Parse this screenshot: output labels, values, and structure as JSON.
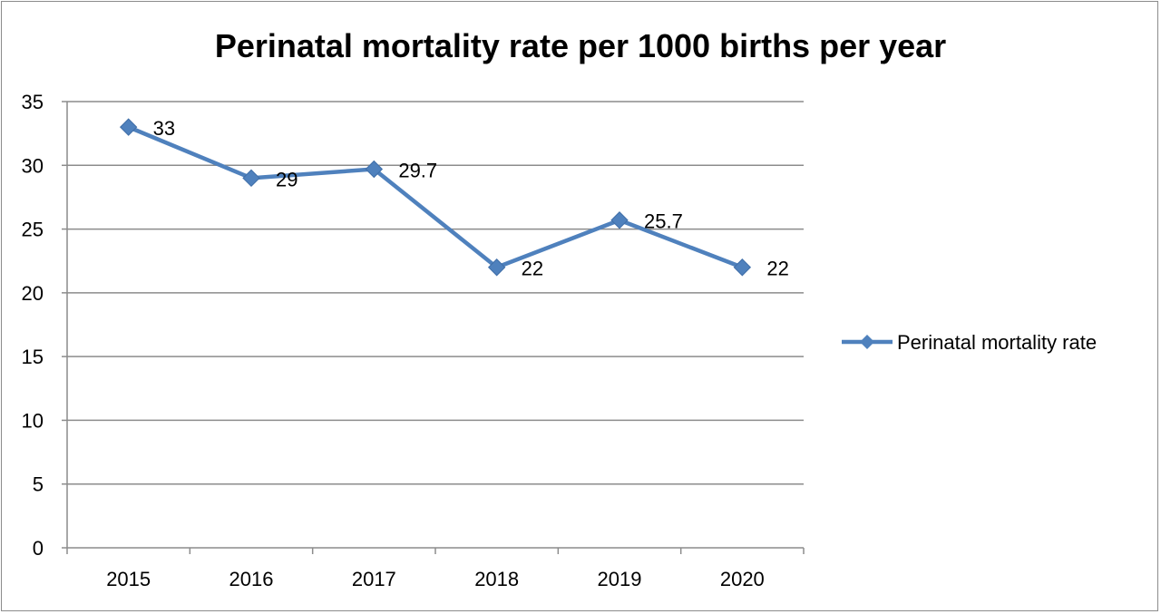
{
  "chart_data": {
    "type": "line",
    "title": "Perinatal mortality rate per 1000 births per year",
    "xlabel": "",
    "ylabel": "",
    "categories": [
      "2015",
      "2016",
      "2017",
      "2018",
      "2019",
      "2020"
    ],
    "series": [
      {
        "name": "Perinatal mortality rate",
        "values": [
          33,
          29,
          29.7,
          22,
          25.7,
          22
        ],
        "data_labels": [
          "33",
          "29",
          "29.7",
          "22",
          "25.7",
          "22"
        ],
        "color": "#4f81bd",
        "marker": "diamond"
      }
    ],
    "ylim": [
      0,
      35
    ],
    "y_ticks": [
      "0",
      "5",
      "10",
      "15",
      "20",
      "25",
      "30",
      "35"
    ],
    "grid": true,
    "legend_position": "right"
  }
}
